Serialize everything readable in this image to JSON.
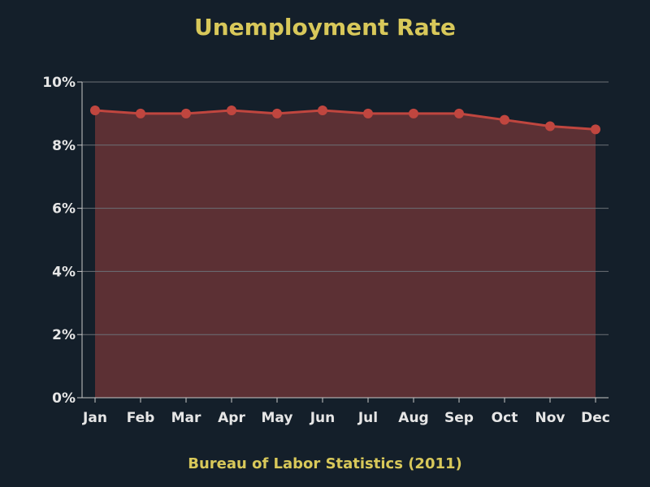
{
  "chart_data": {
    "type": "area",
    "title": "Unemployment Rate",
    "source": "Bureau of Labor Statistics (2011)",
    "xlabel": "",
    "ylabel": "",
    "categories": [
      "Jan",
      "Feb",
      "Mar",
      "Apr",
      "May",
      "Jun",
      "Jul",
      "Aug",
      "Sep",
      "Oct",
      "Nov",
      "Dec"
    ],
    "values": [
      9.1,
      9.0,
      9.0,
      9.1,
      9.0,
      9.1,
      9.0,
      9.0,
      9.0,
      8.8,
      8.6,
      8.5
    ],
    "ylim": [
      0,
      10
    ],
    "yticks": [
      "0%",
      "2%",
      "4%",
      "6%",
      "8%",
      "10%"
    ],
    "ytick_values": [
      0,
      2,
      4,
      6,
      8,
      10
    ],
    "grid": true,
    "colors": {
      "background": "#141f2a",
      "title": "#d8c85a",
      "line": "#c0463f",
      "fill": "#5c3034",
      "grid": "#6b7076",
      "axis": "#c8c8c8",
      "tick_text": "#e6e6e6"
    }
  }
}
